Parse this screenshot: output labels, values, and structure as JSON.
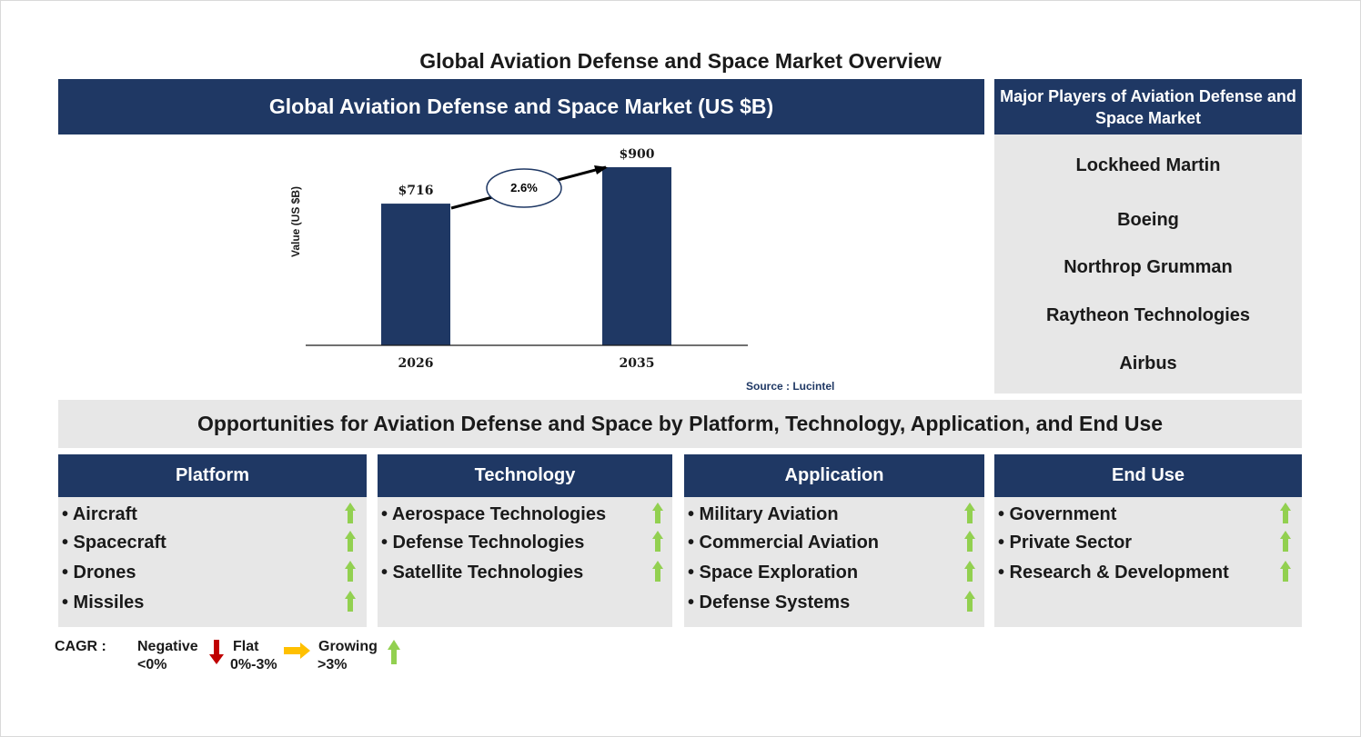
{
  "title": "Global Aviation Defense and Space Market Overview",
  "chart_header": "Global Aviation Defense and Space Market (US $B)",
  "chart_data": {
    "type": "bar",
    "categories": [
      "2026",
      "2035"
    ],
    "values": [
      716,
      900
    ],
    "value_labels": [
      "$716",
      "$900"
    ],
    "ylabel": "Value (US $B)",
    "cagr_label": "2.6%",
    "bar_color": "#1f3864",
    "source": "Source : Lucintel"
  },
  "players": {
    "header": "Major Players of Aviation Defense and Space Market",
    "items": [
      "Lockheed Martin",
      "Boeing",
      "Northrop Grumman",
      "Raytheon Technologies",
      "Airbus"
    ]
  },
  "opportunities_title": "Opportunities for Aviation Defense and Space by Platform, Technology, Application, and End Use",
  "segments": [
    {
      "header": "Platform",
      "items": [
        "• Aircraft",
        "• Spacecraft",
        "• Drones",
        "• Missiles"
      ],
      "trend": "growing"
    },
    {
      "header": "Technology",
      "items": [
        "• Aerospace Technologies",
        "• Defense Technologies",
        "• Satellite Technologies"
      ],
      "trend": "growing"
    },
    {
      "header": "Application",
      "items": [
        "• Military Aviation",
        "• Commercial Aviation",
        "• Space Exploration",
        "• Defense Systems"
      ],
      "trend": "growing"
    },
    {
      "header": "End Use",
      "items": [
        "• Government",
        "• Private Sector",
        "• Research & Development"
      ],
      "trend": "growing"
    }
  ],
  "legend": {
    "cagr": "CAGR :",
    "negative": "Negative",
    "negative_range": "<0%",
    "flat": "Flat",
    "flat_range": "0%-3%",
    "growing": "Growing",
    "growing_range": ">3%"
  },
  "colors": {
    "navy": "#1f3864",
    "grey_panel": "#e7e7e7",
    "growing_arrow": "#92d050",
    "negative_arrow": "#c00000",
    "flat_arrow": "#ffc000"
  },
  "icons": {
    "growing": "up-arrow-icon",
    "negative": "down-arrow-icon",
    "flat": "right-arrow-icon"
  }
}
